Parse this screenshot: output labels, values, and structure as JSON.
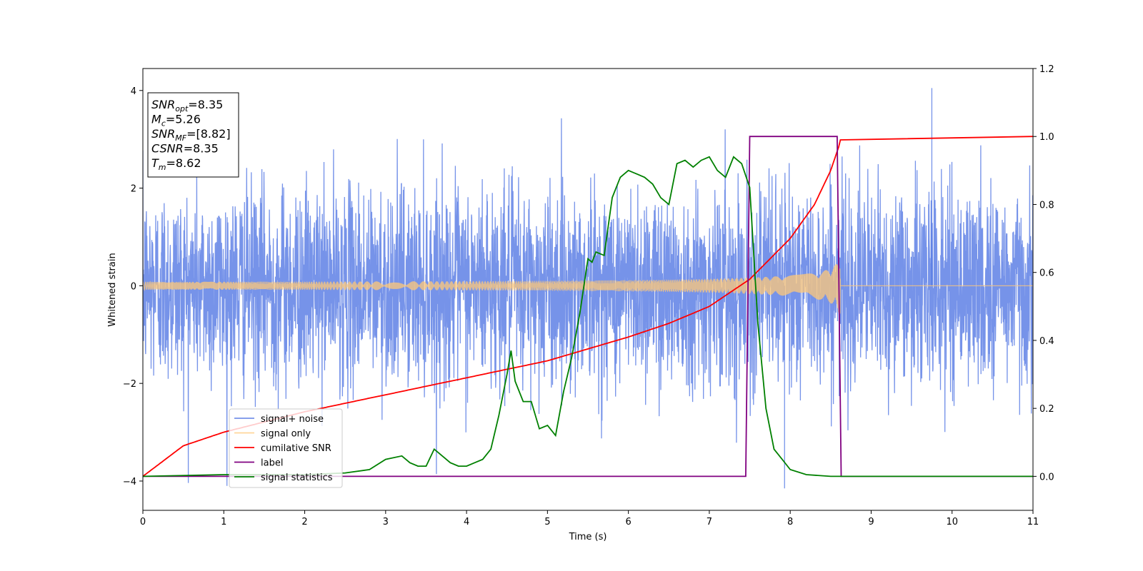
{
  "chart_data": {
    "type": "line",
    "xlabel": "Time (s)",
    "ylabel": "Whitened strain",
    "xlim": [
      0,
      11
    ],
    "ylim_left": [
      -4.6,
      4.45
    ],
    "ylim_right": [
      -0.1,
      1.2
    ],
    "x_ticks": [
      "0",
      "1",
      "2",
      "3",
      "4",
      "5",
      "6",
      "7",
      "8",
      "9",
      "10",
      "11"
    ],
    "y_left_ticks": [
      "−4",
      "−2",
      "0",
      "2",
      "4"
    ],
    "y_right_ticks": [
      "0.0",
      "0.2",
      "0.4",
      "0.6",
      "0.8",
      "1.0",
      "1.2"
    ],
    "legend_position": "lower-left",
    "colors": {
      "noise": "#4169E1",
      "signal": "#FFC878",
      "cumulative_snr": "#FF0000",
      "label": "#800080",
      "statistics": "#008000"
    },
    "series": [
      {
        "name": "signal+ noise",
        "axis": "left",
        "noise_std": 1.0,
        "peak_values": [
          4.05,
          -4.15
        ],
        "x_range": [
          0,
          11
        ]
      },
      {
        "name": "signal only",
        "axis": "left",
        "start_amplitude": 0.08,
        "end_amplitude": 1.0,
        "merger_time": 8.62,
        "x_range": [
          0,
          11
        ]
      },
      {
        "name": "cumilative SNR",
        "axis": "right",
        "x": [
          0,
          0.5,
          1,
          2,
          3,
          4,
          5,
          6,
          6.5,
          7,
          7.5,
          8,
          8.3,
          8.5,
          8.6,
          8.63,
          11
        ],
        "y": [
          0.0,
          0.09,
          0.13,
          0.19,
          0.24,
          0.29,
          0.34,
          0.41,
          0.45,
          0.5,
          0.58,
          0.7,
          0.8,
          0.9,
          0.97,
          1.0,
          1.0
        ]
      },
      {
        "name": "label",
        "axis": "right",
        "x": [
          0,
          7.45,
          7.5,
          8.58,
          8.63,
          11
        ],
        "y": [
          0.0,
          0.0,
          1.0,
          1.0,
          0.0,
          0.0
        ]
      },
      {
        "name": "signal statistics",
        "axis": "right",
        "x": [
          0,
          1,
          2,
          2.5,
          2.8,
          3,
          3.2,
          3.3,
          3.4,
          3.5,
          3.6,
          3.7,
          3.8,
          3.9,
          4.0,
          4.1,
          4.2,
          4.3,
          4.4,
          4.5,
          4.55,
          4.6,
          4.7,
          4.8,
          4.9,
          5.0,
          5.1,
          5.2,
          5.3,
          5.4,
          5.5,
          5.55,
          5.6,
          5.7,
          5.8,
          5.9,
          6.0,
          6.1,
          6.2,
          6.3,
          6.4,
          6.5,
          6.6,
          6.7,
          6.8,
          6.9,
          7.0,
          7.1,
          7.2,
          7.3,
          7.4,
          7.5,
          7.6,
          7.7,
          7.8,
          7.9,
          8.0,
          8.2,
          8.5,
          11
        ],
        "y": [
          0.0,
          0.005,
          0.005,
          0.01,
          0.02,
          0.05,
          0.06,
          0.04,
          0.03,
          0.03,
          0.08,
          0.06,
          0.04,
          0.03,
          0.03,
          0.04,
          0.05,
          0.08,
          0.18,
          0.3,
          0.37,
          0.28,
          0.22,
          0.22,
          0.14,
          0.15,
          0.12,
          0.25,
          0.35,
          0.48,
          0.64,
          0.63,
          0.66,
          0.65,
          0.82,
          0.88,
          0.9,
          0.89,
          0.88,
          0.86,
          0.82,
          0.8,
          0.92,
          0.93,
          0.91,
          0.93,
          0.94,
          0.9,
          0.88,
          0.94,
          0.92,
          0.85,
          0.45,
          0.2,
          0.08,
          0.05,
          0.02,
          0.005,
          0.0,
          0.0
        ]
      }
    ],
    "annotation": {
      "lines": [
        {
          "name": "SNR",
          "sub": "opt",
          "value": "=8.35"
        },
        {
          "name": "M",
          "sub": "c",
          "value": "=5.26"
        },
        {
          "name": "SNR",
          "sub": "MF",
          "value": "=[8.82]"
        },
        {
          "name": "CSNR",
          "sub": "",
          "value": "=8.35"
        },
        {
          "name": "T",
          "sub": "m",
          "value": "=8.62"
        }
      ]
    }
  }
}
